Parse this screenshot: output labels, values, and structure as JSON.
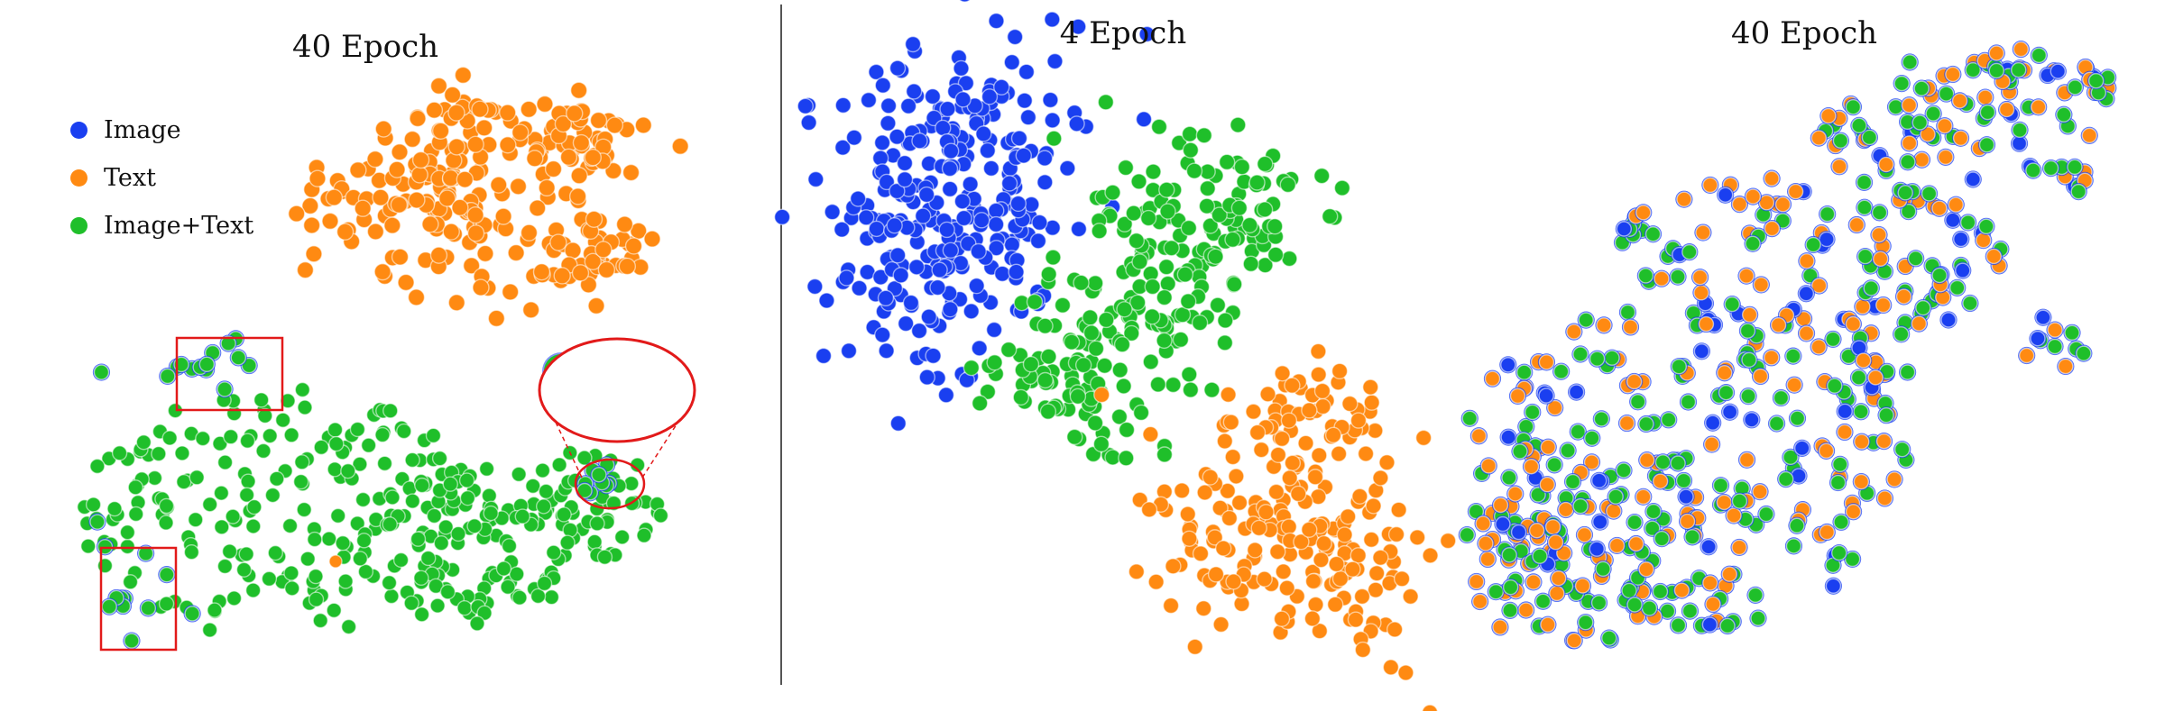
{
  "colors": {
    "image": "#1a3ff0",
    "text": "#ff8a12",
    "image_text": "#1fbf2a",
    "highlight": "#e21a1a",
    "divider": "#555555"
  },
  "legend": [
    {
      "label": "Image",
      "color": "#1a3ff0"
    },
    {
      "label": "Text",
      "color": "#ff8a12"
    },
    {
      "label": "Image+Text",
      "color": "#1fbf2a"
    }
  ],
  "chart_data": [
    {
      "type": "scatter",
      "title": "40 Epoch",
      "legend_position": "top-left",
      "series": [
        {
          "name": "Text",
          "cluster": "upper-right compact cluster"
        },
        {
          "name": "Image+Text",
          "cluster": "large lower cluster"
        }
      ],
      "annotations": [
        "zoom-inset",
        "highlight-box-upper",
        "highlight-box-lower",
        "highlight-ellipse"
      ]
    },
    {
      "type": "scatter",
      "title": "4 Epoch",
      "series": [
        {
          "name": "Image",
          "cluster": "upper-left cluster"
        },
        {
          "name": "Image+Text",
          "cluster": "middle diagonal band"
        },
        {
          "name": "Text",
          "cluster": "lower-right cluster"
        }
      ]
    },
    {
      "type": "scatter",
      "title": "40 Epoch",
      "series": [
        {
          "name": "Image",
          "cluster": "overlapping small groups"
        },
        {
          "name": "Text",
          "cluster": "overlapping small groups"
        },
        {
          "name": "Image+Text",
          "cluster": "overlapping small groups"
        }
      ]
    }
  ]
}
